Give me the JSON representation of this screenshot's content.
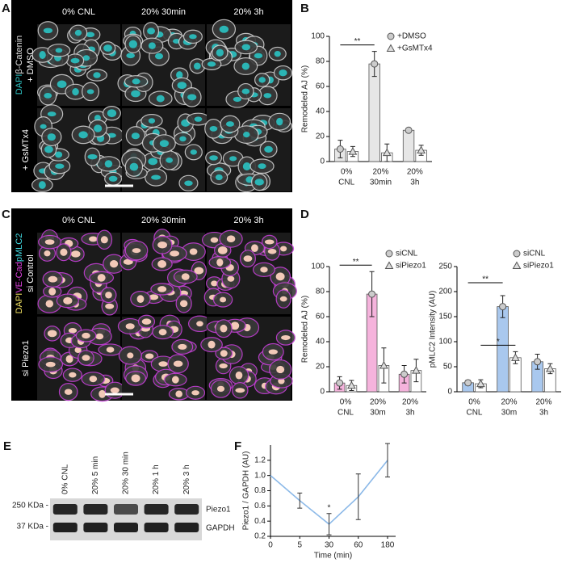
{
  "panel_labels": [
    "A",
    "B",
    "C",
    "D",
    "E",
    "F"
  ],
  "panel_a": {
    "columns": [
      "0% CNL",
      "20% 30min",
      "20% 3h"
    ],
    "rows": [
      {
        "stain": [
          "DAPI",
          "β-Catenin"
        ],
        "treatment": "+ DMSO"
      },
      {
        "treatment": "+ GsMTx4"
      }
    ]
  },
  "panel_c": {
    "columns": [
      "0% CNL",
      "20% 30min",
      "20% 3h"
    ],
    "rows": [
      {
        "stain": [
          "DAPI",
          "VE-Cad",
          "pMLC2"
        ],
        "treatment": "si Control"
      },
      {
        "treatment": "si Piezo1"
      }
    ]
  },
  "panel_e": {
    "lanes": [
      "0% CNL",
      "20% 5 min",
      "20% 30 min",
      "20% 1 h",
      "20% 3 h"
    ],
    "markers": [
      "250 KDa -",
      "37 KDa -"
    ],
    "bands": [
      "Piezo1",
      "GAPDH"
    ]
  },
  "chart_data": [
    {
      "type": "bar",
      "ylabel": "Remodeled  AJ (%)",
      "categories": [
        [
          "0%",
          "CNL"
        ],
        [
          "20%",
          "30min"
        ],
        [
          "20%",
          "3h"
        ]
      ],
      "series": [
        {
          "name": "+DMSO",
          "color": "#e6e6e6",
          "marker": "circle",
          "values": [
            10,
            78,
            25
          ],
          "errors": [
            7,
            10,
            1
          ]
        },
        {
          "name": "+GsMTx4",
          "color": "#ffffff",
          "marker": "triangle",
          "values": [
            8,
            7,
            9
          ],
          "errors": [
            4,
            7,
            4
          ]
        }
      ],
      "ylim": [
        0,
        100
      ],
      "yticks": [
        0,
        20,
        40,
        60,
        80,
        100
      ],
      "annotations": [
        {
          "text": "**",
          "from": [
            0,
            0
          ],
          "to": [
            0,
            1
          ]
        }
      ]
    },
    {
      "type": "bar",
      "ylabel": "Remodeled  AJ (%)",
      "categories": [
        [
          "0%",
          "CNL"
        ],
        [
          "20%",
          "30m"
        ],
        [
          "20%",
          "3h"
        ]
      ],
      "series": [
        {
          "name": "siCNL",
          "color": "#f5b3dc",
          "marker": "circle",
          "values": [
            7,
            78,
            14
          ],
          "errors": [
            5,
            18,
            7
          ]
        },
        {
          "name": "siPiezo1",
          "color": "#ffffff",
          "marker": "triangle",
          "values": [
            5,
            21,
            17
          ],
          "errors": [
            4,
            14,
            9
          ]
        }
      ],
      "ylim": [
        0,
        100
      ],
      "yticks": [
        0,
        20,
        40,
        60,
        80,
        100
      ],
      "annotations": [
        {
          "text": "**",
          "from": [
            0,
            0
          ],
          "to": [
            0,
            1
          ]
        }
      ]
    },
    {
      "type": "bar",
      "ylabel": "pMLC2 Intensity (AU)",
      "categories": [
        [
          "0%",
          "CNL"
        ],
        [
          "20%",
          "30m"
        ],
        [
          "20%",
          "3h"
        ]
      ],
      "series": [
        {
          "name": "siCNL",
          "color": "#a9c8ee",
          "marker": "circle",
          "values": [
            18,
            170,
            60
          ],
          "errors": [
            5,
            22,
            15
          ]
        },
        {
          "name": "siPiezo1",
          "color": "#ffffff",
          "marker": "triangle",
          "values": [
            16,
            68,
            46
          ],
          "errors": [
            8,
            12,
            10
          ]
        }
      ],
      "ylim": [
        0,
        250
      ],
      "yticks": [
        0,
        50,
        100,
        150,
        200,
        250
      ],
      "annotations": [
        {
          "text": "**",
          "from": [
            0,
            0
          ],
          "to": [
            0,
            1
          ]
        },
        {
          "text": "*",
          "from": [
            1,
            0
          ],
          "to": [
            1,
            1
          ]
        }
      ]
    },
    {
      "type": "line",
      "xlabel": "Time (min)",
      "ylabel": "Piezo1 / GAPDH (AU)",
      "categories": [
        "0",
        "5",
        "30",
        "60",
        "180"
      ],
      "series": [
        {
          "name": null,
          "color": "#8cb9e8",
          "values": [
            1.0,
            0.67,
            0.36,
            0.72,
            1.2
          ],
          "errors": [
            0,
            0.1,
            0.14,
            0.3,
            0.22
          ]
        }
      ],
      "ylim": [
        0.2,
        1.4
      ],
      "yticks": [
        0.2,
        0.4,
        0.6,
        0.8,
        {
          "value": 1,
          "label": "1.0"
        },
        1.2
      ],
      "annotations": [
        {
          "text": "*",
          "at": 2
        }
      ]
    }
  ]
}
